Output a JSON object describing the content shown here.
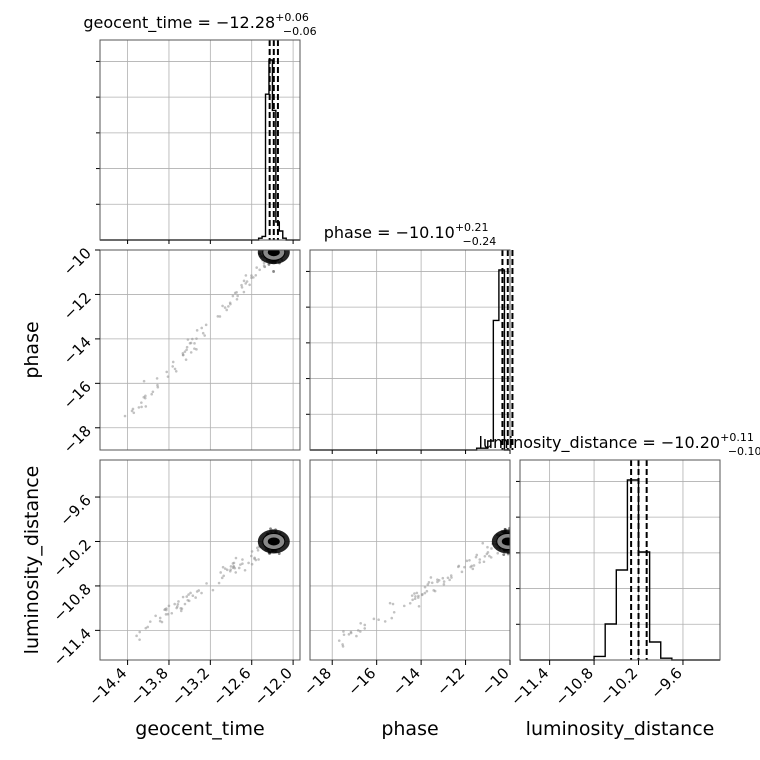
{
  "chart_data": {
    "type": "corner",
    "parameters": [
      "geocent_time",
      "phase",
      "luminosity_distance"
    ],
    "titles": [
      {
        "param": "geocent_time",
        "prefix": "geocent_time = −12.28",
        "plus": "+0.06",
        "minus": "−0.06"
      },
      {
        "param": "phase",
        "prefix": "phase = −10.10",
        "plus": "+0.21",
        "minus": "−0.24"
      },
      {
        "param": "luminosity_distance",
        "prefix": "luminosity_distance = −10.20",
        "plus": "+0.11",
        "minus": "−0.10"
      }
    ],
    "axis_labels": {
      "x": [
        "geocent_time",
        "phase",
        "luminosity_distance"
      ],
      "y": [
        "phase",
        "luminosity_distance"
      ]
    },
    "ranges": {
      "geocent_time": [
        -14.8,
        -11.9
      ],
      "phase": [
        -19.0,
        -10.0
      ],
      "luminosity_distance": [
        -11.8,
        -9.1
      ]
    },
    "ticks": {
      "geocent_time": [
        "−14.4",
        "−13.8",
        "−13.2",
        "−12.6",
        "−12.0"
      ],
      "phase": [
        "−18",
        "−16",
        "−14",
        "−12",
        "−10"
      ],
      "luminosity_distance": [
        "−11.4",
        "−10.8",
        "−10.2",
        "−9.6"
      ]
    },
    "tick_values": {
      "geocent_time": [
        -14.4,
        -13.8,
        -13.2,
        -12.6,
        -12.0
      ],
      "phase": [
        -18,
        -16,
        -14,
        -12,
        -10
      ],
      "luminosity_distance": [
        -11.4,
        -10.8,
        -10.2,
        -9.6
      ]
    },
    "histograms": {
      "geocent_time": {
        "edges": [
          -12.5,
          -12.45,
          -12.4,
          -12.35,
          -12.3,
          -12.25,
          -12.2,
          -12.15,
          -12.1,
          -12.05
        ],
        "counts": [
          0.01,
          0.02,
          0.81,
          1.0,
          0.72,
          0.1,
          0.05,
          0.01,
          0.0
        ]
      },
      "phase": {
        "edges": [
          -12.5,
          -12.0,
          -11.5,
          -11.0,
          -10.75,
          -10.5,
          -10.25,
          -10.0
        ],
        "counts": [
          0.0,
          0.0,
          0.01,
          0.05,
          0.72,
          1.0,
          0.0
        ]
      },
      "luminosity_distance": {
        "edges": [
          -10.8,
          -10.65,
          -10.5,
          -10.35,
          -10.2,
          -10.05,
          -9.9,
          -9.75,
          -9.6
        ],
        "counts": [
          0.02,
          0.2,
          0.5,
          1.0,
          0.6,
          0.1,
          0.01,
          0.0
        ]
      }
    },
    "quantile_lines": {
      "geocent_time": [
        -12.34,
        -12.28,
        -12.22
      ],
      "phase": [
        -10.34,
        -10.1,
        -9.89
      ],
      "luminosity_distance": [
        -10.3,
        -10.2,
        -10.09
      ]
    },
    "centers": {
      "geocent_time": -12.28,
      "phase": -10.1,
      "luminosity_distance": -10.2
    },
    "grid": true
  }
}
